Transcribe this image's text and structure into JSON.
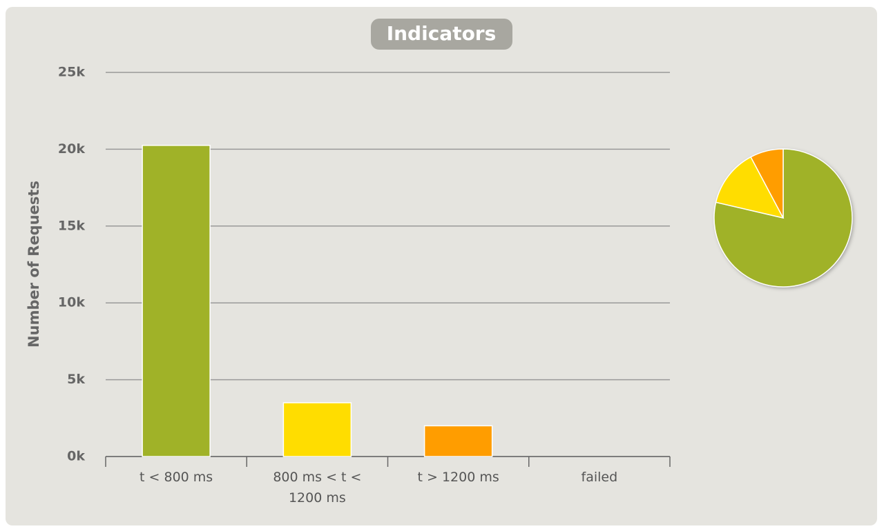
{
  "chart_data": {
    "type": "bar",
    "title": "Indicators",
    "y_label": "Number of Requests",
    "categories": [
      "t < 800 ms",
      "800 ms < t < 1200 ms",
      "t > 1200 ms",
      "failed"
    ],
    "values": [
      20250,
      3500,
      2000,
      0
    ],
    "colors": [
      "#a0b228",
      "#ffdd00",
      "#ff9d00",
      "#f15b4f"
    ],
    "ylim": [
      0,
      25000
    ],
    "yticks": [
      {
        "value": 0,
        "label": "0k"
      },
      {
        "value": 5000,
        "label": "5k"
      },
      {
        "value": 10000,
        "label": "10k"
      },
      {
        "value": 15000,
        "label": "15k"
      },
      {
        "value": 20000,
        "label": "20k"
      },
      {
        "value": 25000,
        "label": "25k"
      }
    ],
    "grid": true,
    "pie": true
  }
}
